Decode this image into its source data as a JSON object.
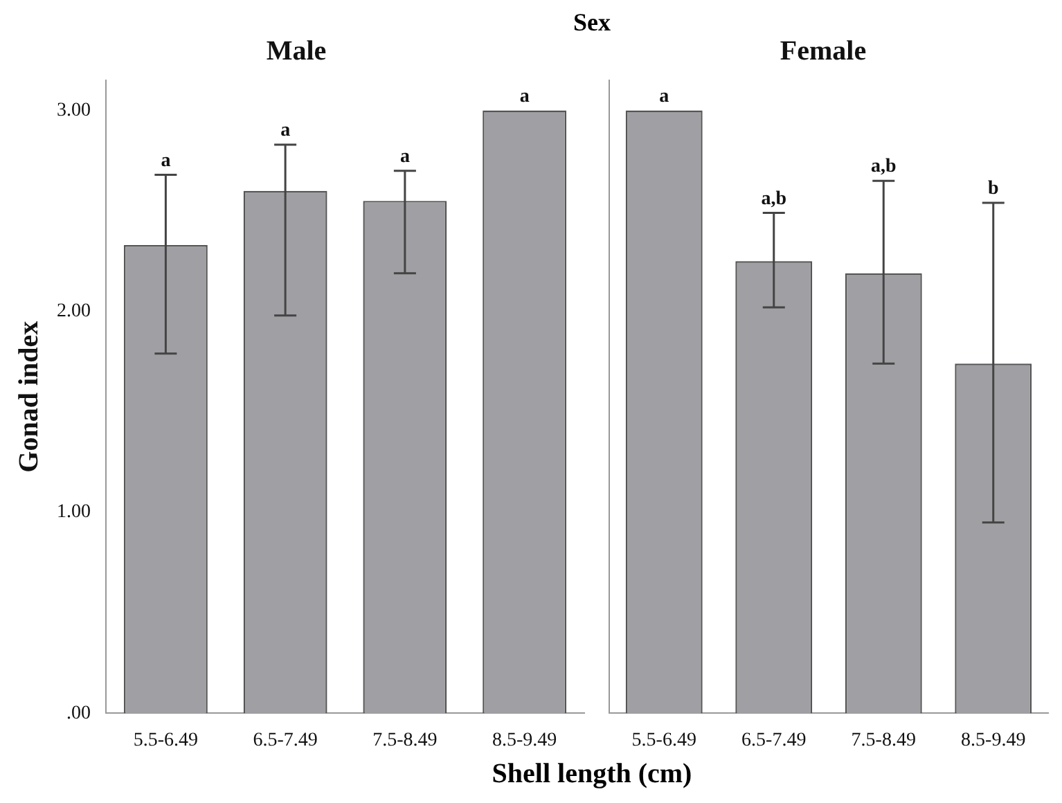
{
  "chart_data": [
    {
      "type": "bar",
      "title": "Male",
      "annotations": [
        "Sex",
        {
          "text": "a",
          "x": "5.5-6.49",
          "y": 2.68
        },
        {
          "text": "a",
          "x": "6.5-7.49",
          "y": 2.83
        },
        {
          "text": "a",
          "x": "7.5-8.49",
          "y": 2.7
        },
        {
          "text": "a",
          "x": "8.5-9.49",
          "y": 3.0
        }
      ],
      "xlabel": "Shell length (cm)",
      "ylabel": "Gonad index",
      "categories": [
        "5.5-6.49",
        "6.5-7.49",
        "7.5-8.49",
        "8.5-9.49"
      ],
      "values": [
        2.33,
        2.6,
        2.55,
        3.0
      ],
      "color": "#a0a0a4",
      "errors": [
        [
          1.79,
          2.68
        ],
        [
          1.98,
          2.83
        ],
        [
          2.19,
          2.7
        ],
        null
      ],
      "ylim": [
        0,
        3.15
      ],
      "yticks": [
        {
          "value": 0,
          "label": ".00"
        },
        {
          "value": 1,
          "label": "1.00"
        },
        {
          "value": 2,
          "label": "2.00"
        },
        {
          "value": 3,
          "label": "3.00"
        }
      ],
      "grid": false,
      "legend": false
    },
    {
      "type": "bar",
      "title": "Female",
      "annotations": [
        {
          "text": "a",
          "x": "5.5-6.49",
          "y": 3.0
        },
        {
          "text": "a,b",
          "x": "6.5-7.49",
          "y": 2.49
        },
        {
          "text": "a,b",
          "x": "7.5-8.49",
          "y": 2.65
        },
        {
          "text": "b",
          "x": "8.5-9.49",
          "y": 2.54
        }
      ],
      "categories": [
        "5.5-6.49",
        "6.5-7.49",
        "7.5-8.49",
        "8.5-9.49"
      ],
      "values": [
        3.0,
        2.25,
        2.19,
        1.74
      ],
      "color": "#a0a0a4",
      "errors": [
        null,
        [
          2.02,
          2.49
        ],
        [
          1.74,
          2.65
        ],
        [
          0.95,
          2.54
        ]
      ],
      "ylim": [
        0,
        3.15
      ],
      "grid": false,
      "legend": false,
      "tick_labels": "x"
    }
  ]
}
